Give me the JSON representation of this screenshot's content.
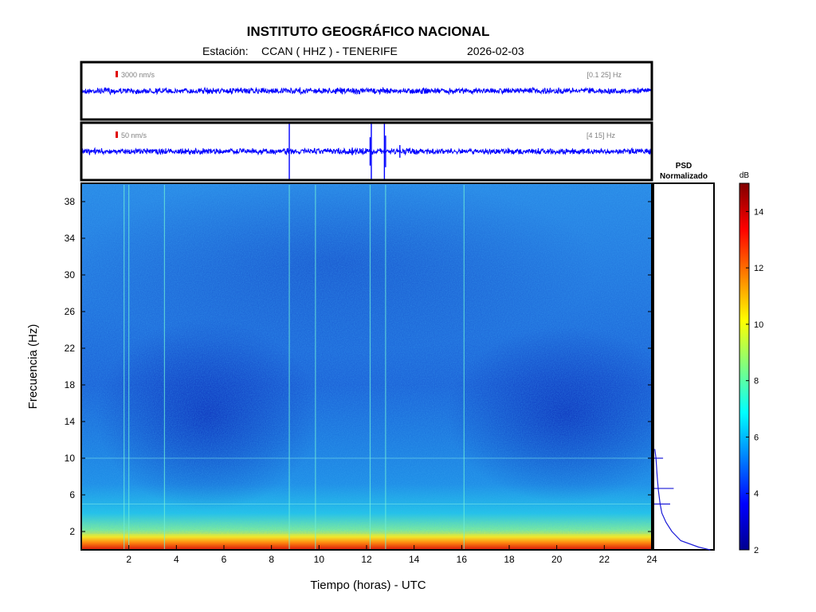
{
  "header": {
    "institution": "INSTITUTO GEOGRÁFICO NACIONAL",
    "station_label": "Estación:",
    "station": "CCAN ( HHZ ) - TENERIFE",
    "date": "2026-02-03"
  },
  "chart_data": [
    {
      "type": "line",
      "name": "seismogram-broadband",
      "scale_label": "3000 nm/s",
      "band_label": "[0.1 25] Hz",
      "x_range": [
        0,
        24
      ],
      "color": "#0000ff",
      "noise_level": 0.05,
      "events": []
    },
    {
      "type": "line",
      "name": "seismogram-filtered",
      "scale_label": "50 nm/s",
      "band_label": "[4 15] Hz",
      "x_range": [
        0,
        24
      ],
      "color": "#0000ff",
      "noise_level": 0.05,
      "events": [
        {
          "t": 8.75,
          "amp": 1.0
        },
        {
          "t": 11.4,
          "amp": 0.12
        },
        {
          "t": 12.15,
          "amp": 0.45
        },
        {
          "t": 12.2,
          "amp": 0.9
        },
        {
          "t": 12.75,
          "amp": 1.0
        },
        {
          "t": 12.8,
          "amp": 0.5
        },
        {
          "t": 13.4,
          "amp": 0.2
        }
      ]
    },
    {
      "type": "heatmap",
      "name": "spectrogram",
      "xlabel": "Tiempo (horas) - UTC",
      "ylabel": "Frecuencia  (Hz)",
      "x_range": [
        0,
        24
      ],
      "y_range": [
        0,
        40
      ],
      "x_ticks": [
        2,
        4,
        6,
        8,
        10,
        12,
        14,
        16,
        18,
        20,
        22,
        24
      ],
      "y_ticks": [
        2,
        6,
        10,
        14,
        18,
        22,
        26,
        30,
        34,
        38
      ],
      "vertical_lines_hours": [
        1.8,
        2.0,
        3.5,
        8.75,
        9.85,
        12.15,
        12.8,
        16.1
      ],
      "horizontal_lines_hz": [
        10,
        5
      ]
    },
    {
      "type": "line",
      "name": "psd",
      "title_line1": "PSD",
      "title_line2": "Normalizado",
      "y_range": [
        0,
        40
      ],
      "profile": [
        {
          "f": 0.0,
          "v": 0.95
        },
        {
          "f": 0.3,
          "v": 0.75
        },
        {
          "f": 1.0,
          "v": 0.45
        },
        {
          "f": 2.0,
          "v": 0.3
        },
        {
          "f": 3.0,
          "v": 0.2
        },
        {
          "f": 4.0,
          "v": 0.13
        },
        {
          "f": 5.0,
          "v": 0.1
        },
        {
          "f": 6.5,
          "v": 0.07
        },
        {
          "f": 8.0,
          "v": 0.05
        },
        {
          "f": 10.0,
          "v": 0.03
        },
        {
          "f": 11.0,
          "v": 0.01
        }
      ],
      "spikes": [
        {
          "f": 10.0,
          "v": 0.15
        },
        {
          "f": 6.7,
          "v": 0.33
        },
        {
          "f": 5.0,
          "v": 0.27
        }
      ]
    }
  ],
  "colorbar": {
    "unit": "dB",
    "range": [
      2,
      15
    ],
    "ticks": [
      2,
      4,
      6,
      8,
      10,
      12,
      14
    ]
  }
}
